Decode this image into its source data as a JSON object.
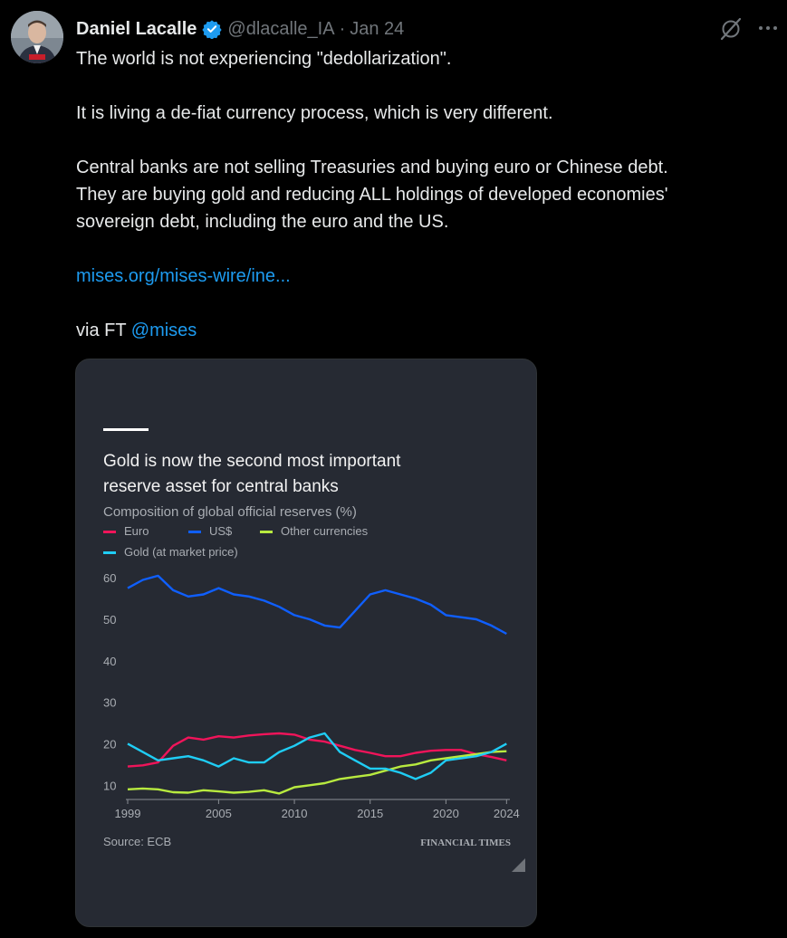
{
  "tweet": {
    "author_name": "Daniel Lacalle",
    "handle": "@dlacalle_IA",
    "separator": "·",
    "date": "Jan 24",
    "text_lines": [
      "The world is not experiencing \"dedollarization\".",
      "It is living a de-fiat currency process, which is very different.",
      "Central banks are not selling Treasuries and buying euro or Chinese debt.",
      "They are buying gold and reducing ALL holdings of developed economies'",
      "sovereign debt, including the euro and the US."
    ],
    "link": "mises.org/mises-wire/ine...",
    "via_prefix": "via FT ",
    "mention": "@mises",
    "icons": {
      "verified": "verified-badge-icon",
      "grok": "grok-icon",
      "more": "more-icon"
    },
    "colors": {
      "link": "#1d9bf0",
      "verified": "#1d9bf0"
    }
  },
  "chart_data": {
    "type": "line",
    "title_lines": [
      "Gold is now the second most important",
      "reserve asset for central banks"
    ],
    "subtitle": "Composition of global official reserves (%)",
    "source": "Source: ECB",
    "brand": "FINANCIAL TIMES",
    "ylim": [
      7,
      62
    ],
    "yticks": [
      10,
      20,
      30,
      40,
      50,
      60
    ],
    "xlim": [
      1999,
      2024.1
    ],
    "xticks": [
      1999,
      2005,
      2010,
      2015,
      2020,
      2024
    ],
    "grid": false,
    "legend_position": "top-left",
    "series": [
      {
        "name": "Euro",
        "color": "#f0145a",
        "x": [
          1999,
          2000,
          2001,
          2002,
          2003,
          2004,
          2005,
          2006,
          2007,
          2008,
          2009,
          2010,
          2011,
          2012,
          2013,
          2014,
          2015,
          2016,
          2017,
          2018,
          2019,
          2020,
          2021,
          2022,
          2023,
          2024
        ],
        "y": [
          14.5,
          14.8,
          15.5,
          19.5,
          21.5,
          21,
          21.8,
          21.5,
          22,
          22.3,
          22.5,
          22.2,
          21,
          20.5,
          19.5,
          18.5,
          17.8,
          17,
          17,
          17.8,
          18.3,
          18.5,
          18.5,
          17.5,
          16.8,
          16
        ]
      },
      {
        "name": "US$",
        "color": "#0f5fff",
        "x": [
          1999,
          2000,
          2001,
          2002,
          2003,
          2004,
          2005,
          2006,
          2007,
          2008,
          2009,
          2010,
          2011,
          2012,
          2013,
          2014,
          2015,
          2016,
          2017,
          2018,
          2019,
          2020,
          2021,
          2022,
          2023,
          2024
        ],
        "y": [
          57.5,
          59.5,
          60.5,
          57,
          55.5,
          56,
          57.5,
          56,
          55.5,
          54.5,
          53,
          51,
          50,
          48.5,
          48,
          52,
          56,
          57,
          56,
          55,
          53.5,
          51,
          50.5,
          50,
          48.5,
          46.5
        ]
      },
      {
        "name": "Other currencies",
        "color": "#b8ea3f",
        "x": [
          1999,
          2000,
          2001,
          2002,
          2003,
          2004,
          2005,
          2006,
          2007,
          2008,
          2009,
          2010,
          2011,
          2012,
          2013,
          2014,
          2015,
          2016,
          2017,
          2018,
          2019,
          2020,
          2021,
          2022,
          2023,
          2024
        ],
        "y": [
          9,
          9.2,
          9,
          8.3,
          8.2,
          8.8,
          8.5,
          8.2,
          8.4,
          8.8,
          8,
          9.5,
          10,
          10.5,
          11.5,
          12,
          12.5,
          13.5,
          14.5,
          15,
          16,
          16.5,
          17,
          17.5,
          18,
          18.2
        ]
      },
      {
        "name": "Gold (at market price)",
        "color": "#1fcdf5",
        "x": [
          1999,
          2000,
          2001,
          2002,
          2003,
          2004,
          2005,
          2006,
          2007,
          2008,
          2009,
          2010,
          2011,
          2012,
          2013,
          2014,
          2015,
          2016,
          2017,
          2018,
          2019,
          2020,
          2021,
          2022,
          2023,
          2024
        ],
        "y": [
          20,
          18,
          16,
          16.5,
          17,
          16,
          14.5,
          16.5,
          15.5,
          15.5,
          18,
          19.5,
          21.5,
          22.5,
          18,
          16,
          14,
          14,
          13,
          11.5,
          13,
          16,
          16.5,
          17,
          18,
          20
        ]
      }
    ]
  }
}
